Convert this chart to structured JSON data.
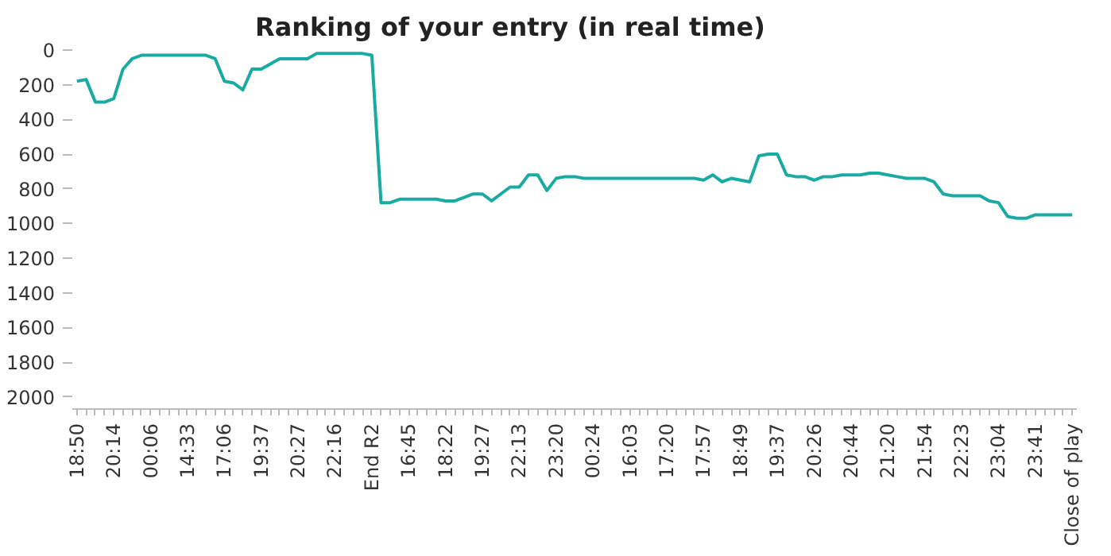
{
  "chart_data": {
    "type": "line",
    "title": "Ranking of your entry (in real time)",
    "categories": [
      "18:50",
      null,
      null,
      null,
      "20:14",
      null,
      null,
      null,
      "00:06",
      null,
      null,
      null,
      "14:33",
      null,
      null,
      null,
      "17:06",
      null,
      null,
      null,
      "19:37",
      null,
      null,
      null,
      "20:27",
      null,
      null,
      null,
      "22:16",
      null,
      null,
      null,
      "End R2",
      null,
      null,
      null,
      "16:45",
      null,
      null,
      null,
      "18:22",
      null,
      null,
      null,
      "19:27",
      null,
      null,
      null,
      "22:13",
      null,
      null,
      null,
      "23:20",
      null,
      null,
      null,
      "00:24",
      null,
      null,
      null,
      "16:03",
      null,
      null,
      null,
      "17:20",
      null,
      null,
      null,
      "17:57",
      null,
      null,
      null,
      "18:49",
      null,
      null,
      null,
      "19:37",
      null,
      null,
      null,
      "20:26",
      null,
      null,
      null,
      "20:44",
      null,
      null,
      null,
      "21:20",
      null,
      null,
      null,
      "21:54",
      null,
      null,
      null,
      "22:23",
      null,
      null,
      null,
      "23:04",
      null,
      null,
      null,
      "23:41",
      null,
      null,
      null,
      "Close of play"
    ],
    "series": [
      {
        "color": "#1aaaa2",
        "values": [
          180,
          170,
          300,
          300,
          280,
          110,
          50,
          30,
          30,
          30,
          30,
          30,
          30,
          30,
          30,
          50,
          180,
          190,
          230,
          110,
          110,
          80,
          50,
          50,
          50,
          50,
          20,
          20,
          20,
          20,
          20,
          20,
          30,
          880,
          880,
          860,
          860,
          860,
          860,
          860,
          870,
          870,
          850,
          830,
          830,
          870,
          830,
          790,
          790,
          720,
          720,
          810,
          740,
          730,
          730,
          740,
          740,
          740,
          740,
          740,
          740,
          740,
          740,
          740,
          740,
          740,
          740,
          740,
          750,
          720,
          760,
          740,
          750,
          760,
          610,
          600,
          600,
          720,
          730,
          730,
          750,
          730,
          730,
          720,
          720,
          720,
          710,
          710,
          720,
          730,
          740,
          740,
          740,
          760,
          830,
          840,
          840,
          840,
          840,
          870,
          880,
          960,
          970,
          970,
          950,
          950,
          950,
          950,
          950
        ]
      }
    ],
    "ylim": [
      2070,
      0
    ],
    "yticks": [
      0,
      200,
      400,
      600,
      800,
      1000,
      1200,
      1400,
      1600,
      1800,
      2000
    ],
    "grid": false,
    "marker": "none",
    "line_style": "solid"
  }
}
